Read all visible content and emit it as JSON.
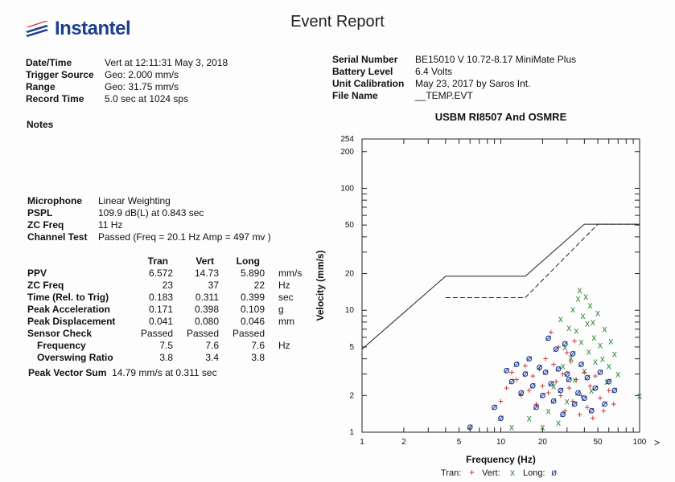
{
  "header": {
    "logo_text": "Instantel",
    "title": "Event Report"
  },
  "event": [
    {
      "label": "Date/Time",
      "value": "Vert at 12:11:31 May 3, 2018"
    },
    {
      "label": "Trigger Source",
      "value": "Geo: 2.000 mm/s"
    },
    {
      "label": "Range",
      "value": "Geo: 31.75 mm/s"
    },
    {
      "label": "Record Time",
      "value": "5.0 sec at 1024 sps"
    }
  ],
  "device": [
    {
      "label": "Serial Number",
      "value": "BE15010 V 10.72-8.17 MiniMate Plus"
    },
    {
      "label": "Battery Level",
      "value": "6.4 Volts"
    },
    {
      "label": "Unit Calibration",
      "value": "May 23, 2017 by Saros Int."
    },
    {
      "label": "File Name",
      "value": "__TEMP.EVT"
    }
  ],
  "notes_label": "Notes",
  "microphone": [
    {
      "label": "Microphone",
      "value": "Linear Weighting"
    },
    {
      "label": "PSPL",
      "value": "109.9 dB(L) at 0.843 sec"
    },
    {
      "label": "ZC Freq",
      "value": "11 Hz"
    },
    {
      "label": "Channel Test",
      "value": "Passed (Freq = 20.1 Hz Amp = 497 mv )"
    }
  ],
  "measurements": {
    "columns": [
      "Tran",
      "Vert",
      "Long"
    ],
    "rows": [
      {
        "label": "PPV",
        "values": [
          "6.572",
          "14.73",
          "5.890"
        ],
        "unit": "mm/s"
      },
      {
        "label": "ZC Freq",
        "values": [
          "23",
          "37",
          "22"
        ],
        "unit": "Hz"
      },
      {
        "label": "Time (Rel. to Trig)",
        "values": [
          "0.183",
          "0.311",
          "0.399"
        ],
        "unit": "sec"
      },
      {
        "label": "Peak Acceleration",
        "values": [
          "0.171",
          "0.398",
          "0.109"
        ],
        "unit": "g"
      },
      {
        "label": "Peak Displacement",
        "values": [
          "0.041",
          "0.080",
          "0.046"
        ],
        "unit": "mm"
      },
      {
        "label": "Sensor Check",
        "values": [
          "Passed",
          "Passed",
          "Passed"
        ],
        "unit": ""
      },
      {
        "label": "Frequency",
        "values": [
          "7.5",
          "7.6",
          "7.6"
        ],
        "unit": "Hz"
      },
      {
        "label": "Overswing Ratio",
        "values": [
          "3.8",
          "3.4",
          "3.8"
        ],
        "unit": ""
      }
    ]
  },
  "peak_vector_sum": {
    "label": "Peak Vector Sum",
    "value": "14.79 mm/s at 0.311 sec"
  },
  "chart_data": {
    "type": "scatter",
    "title": "USBM RI8507 And OSMRE",
    "xlabel": "Frequency (Hz)",
    "ylabel": "Velocity (mm/s)",
    "x_scale": "log",
    "y_scale": "log",
    "xlim": [
      1,
      100
    ],
    "ylim": [
      1,
      254
    ],
    "x_ticks": [
      1,
      2,
      5,
      10,
      20,
      50,
      100
    ],
    "y_ticks": [
      1,
      2,
      5,
      10,
      20,
      50,
      100,
      200,
      254
    ],
    "legend": [
      {
        "text": "Tran:",
        "glyph": "+",
        "color": "#c62828"
      },
      {
        "text": "Vert:",
        "glyph": "x",
        "color": "#2e8b3a"
      },
      {
        "text": "Long:",
        "glyph": "ø",
        "color": "#1f3a8a"
      }
    ],
    "limit_lines": [
      {
        "name": "USBM RI8507",
        "style": "solid",
        "points": [
          [
            1,
            4.8
          ],
          [
            4,
            19
          ],
          [
            15,
            19
          ],
          [
            40,
            50.8
          ],
          [
            100,
            50.8
          ]
        ]
      },
      {
        "name": "OSMRE",
        "style": "dashed",
        "points": [
          [
            4,
            12.7
          ],
          [
            15,
            12.7
          ],
          [
            50,
            50.8
          ],
          [
            100,
            50.8
          ]
        ]
      }
    ],
    "series": [
      {
        "name": "Tran",
        "marker": "+",
        "color": "#c62828",
        "points": [
          [
            10,
            1.8
          ],
          [
            11,
            2.3
          ],
          [
            12,
            3.1
          ],
          [
            13,
            2.7
          ],
          [
            14,
            2.0
          ],
          [
            15,
            3.5
          ],
          [
            16,
            2.2
          ],
          [
            17,
            2.9
          ],
          [
            18,
            1.7
          ],
          [
            19,
            3.3
          ],
          [
            20,
            2.4
          ],
          [
            21,
            4.0
          ],
          [
            22,
            2.1
          ],
          [
            23,
            6.6
          ],
          [
            24,
            3.6
          ],
          [
            25,
            2.6
          ],
          [
            26,
            5.0
          ],
          [
            27,
            2.0
          ],
          [
            28,
            3.0
          ],
          [
            29,
            1.5
          ],
          [
            30,
            4.5
          ],
          [
            31,
            2.3
          ],
          [
            32,
            3.8
          ],
          [
            33,
            1.8
          ],
          [
            34,
            5.6
          ],
          [
            35,
            2.7
          ],
          [
            37,
            1.4
          ],
          [
            38,
            2.0
          ],
          [
            40,
            3.1
          ],
          [
            42,
            1.6
          ],
          [
            44,
            2.4
          ],
          [
            46,
            1.3
          ],
          [
            48,
            2.9
          ],
          [
            52,
            1.9
          ],
          [
            55,
            1.5
          ],
          [
            60,
            2.2
          ],
          [
            65,
            1.7
          ]
        ]
      },
      {
        "name": "Vert",
        "marker": "x",
        "color": "#2e8b3a",
        "points": [
          [
            12,
            1.1
          ],
          [
            16,
            1.3
          ],
          [
            20,
            1.1
          ],
          [
            22,
            1.5
          ],
          [
            24,
            2.4
          ],
          [
            26,
            1.2
          ],
          [
            27,
            8.5
          ],
          [
            28,
            3.5
          ],
          [
            29,
            5.0
          ],
          [
            30,
            1.8
          ],
          [
            31,
            7.2
          ],
          [
            32,
            4.1
          ],
          [
            33,
            10.2
          ],
          [
            34,
            2.7
          ],
          [
            35,
            6.8
          ],
          [
            36,
            12.5
          ],
          [
            37,
            14.7
          ],
          [
            38,
            5.5
          ],
          [
            39,
            9.0
          ],
          [
            40,
            3.2
          ],
          [
            41,
            13.0
          ],
          [
            42,
            7.8
          ],
          [
            43,
            4.6
          ],
          [
            44,
            11.0
          ],
          [
            45,
            2.2
          ],
          [
            46,
            8.0
          ],
          [
            47,
            6.0
          ],
          [
            48,
            3.8
          ],
          [
            50,
            9.5
          ],
          [
            52,
            5.2
          ],
          [
            54,
            4.0
          ],
          [
            56,
            7.0
          ],
          [
            58,
            2.6
          ],
          [
            60,
            3.5
          ],
          [
            62,
            5.6
          ],
          [
            66,
            4.4
          ],
          [
            70,
            3.0
          ],
          [
            100,
            2.0
          ]
        ]
      },
      {
        "name": "Long",
        "marker": "o",
        "color": "#1f3a8a",
        "points": [
          [
            6,
            1.1
          ],
          [
            9,
            1.6
          ],
          [
            10,
            1.3
          ],
          [
            11,
            3.2
          ],
          [
            12,
            2.6
          ],
          [
            13,
            3.6
          ],
          [
            14,
            2.1
          ],
          [
            15,
            3.0
          ],
          [
            16,
            4.0
          ],
          [
            17,
            2.4
          ],
          [
            18,
            1.6
          ],
          [
            19,
            3.4
          ],
          [
            20,
            2.0
          ],
          [
            21,
            3.1
          ],
          [
            22,
            5.9
          ],
          [
            23,
            2.5
          ],
          [
            24,
            1.8
          ],
          [
            25,
            4.8
          ],
          [
            26,
            3.3
          ],
          [
            27,
            2.2
          ],
          [
            28,
            1.4
          ],
          [
            29,
            5.3
          ],
          [
            30,
            3.0
          ],
          [
            31,
            2.7
          ],
          [
            33,
            4.4
          ],
          [
            34,
            1.7
          ],
          [
            36,
            2.1
          ],
          [
            38,
            3.6
          ],
          [
            40,
            1.9
          ],
          [
            42,
            2.8
          ],
          [
            45,
            1.5
          ],
          [
            48,
            2.3
          ],
          [
            52,
            3.1
          ],
          [
            56,
            1.7
          ],
          [
            60,
            2.6
          ],
          [
            66,
            2.2
          ]
        ]
      }
    ]
  }
}
